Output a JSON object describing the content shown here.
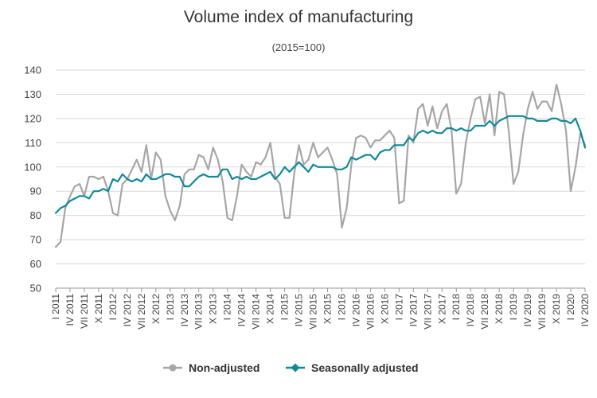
{
  "chart_data": {
    "type": "line",
    "title": "Volume index of manufacturing",
    "subtitle": "(2015=100)",
    "xlabel": "",
    "ylabel": "",
    "ylim": [
      50,
      140
    ],
    "yticks": [
      50,
      60,
      70,
      80,
      90,
      100,
      110,
      120,
      130,
      140
    ],
    "grid": true,
    "legend_position": "bottom-center",
    "x": [
      "I 2011",
      "II 2011",
      "III 2011",
      "IV 2011",
      "V 2011",
      "VI 2011",
      "VII 2011",
      "VIII 2011",
      "IX 2011",
      "X 2011",
      "XI 2011",
      "XII 2011",
      "I 2012",
      "II 2012",
      "III 2012",
      "IV 2012",
      "V 2012",
      "VI 2012",
      "VII 2012",
      "VIII 2012",
      "IX 2012",
      "X 2012",
      "XI 2012",
      "XII 2012",
      "I 2013",
      "II 2013",
      "III 2013",
      "IV 2013",
      "V 2013",
      "VI 2013",
      "VII 2013",
      "VIII 2013",
      "IX 2013",
      "X 2013",
      "XI 2013",
      "XII 2013",
      "I 2014",
      "II 2014",
      "III 2014",
      "IV 2014",
      "V 2014",
      "VI 2014",
      "VII 2014",
      "VIII 2014",
      "IX 2014",
      "X 2014",
      "XI 2014",
      "XII 2014",
      "I 2015",
      "II 2015",
      "III 2015",
      "IV 2015",
      "V 2015",
      "VI 2015",
      "VII 2015",
      "VIII 2015",
      "IX 2015",
      "X 2015",
      "XI 2015",
      "XII 2015",
      "I 2016",
      "II 2016",
      "III 2016",
      "IV 2016",
      "V 2016",
      "VI 2016",
      "VII 2016",
      "VIII 2016",
      "IX 2016",
      "X 2016",
      "XI 2016",
      "XII 2016",
      "I 2017",
      "II 2017",
      "III 2017",
      "IV 2017",
      "V 2017",
      "VI 2017",
      "VII 2017",
      "VIII 2017",
      "IX 2017",
      "X 2017",
      "XI 2017",
      "XII 2017",
      "I 2018",
      "II 2018",
      "III 2018",
      "IV 2018",
      "V 2018",
      "VI 2018",
      "VII 2018",
      "VIII 2018",
      "IX 2018",
      "X 2018",
      "XI 2018",
      "XII 2018",
      "I 2019",
      "II 2019",
      "III 2019",
      "IV 2019",
      "V 2019",
      "VI 2019",
      "VII 2019",
      "VIII 2019",
      "IX 2019",
      "X 2019",
      "XI 2019",
      "XII 2019",
      "I 2020",
      "II 2020",
      "III 2020",
      "IV 2020"
    ],
    "xtick_labels": [
      "I 2011",
      "IV 2011",
      "VII 2011",
      "X 2011",
      "I 2012",
      "IV 2012",
      "VII 2012",
      "X 2012",
      "I 2013",
      "IV 2013",
      "VII 2013",
      "X 2013",
      "I 2014",
      "IV 2014",
      "VII 2014",
      "X 2014",
      "I 2015",
      "IV 2015",
      "VII 2015",
      "X 2015",
      "I 2016",
      "IV 2016",
      "VII 2016",
      "X 2016",
      "I 2017",
      "IV 2017",
      "VII 2017",
      "X 2017",
      "I 2018",
      "IV 2018",
      "VII 2018",
      "X 2018",
      "I 2019",
      "IV 2019",
      "VII 2019",
      "X 2019",
      "I 2020",
      "IV 2020"
    ],
    "series": [
      {
        "name": "Non-adjusted",
        "color": "#a6a6a6",
        "values": [
          67,
          69,
          83,
          88,
          92,
          93,
          88,
          96,
          96,
          95,
          96,
          90,
          81,
          80,
          93,
          95,
          99,
          103,
          98,
          109,
          95,
          106,
          103,
          88,
          82,
          78,
          84,
          97,
          99,
          99,
          105,
          104,
          99,
          108,
          103,
          94,
          79,
          78,
          88,
          101,
          98,
          96,
          102,
          101,
          104,
          110,
          96,
          93,
          79,
          79,
          97,
          109,
          101,
          103,
          110,
          104,
          106,
          108,
          103,
          97,
          75,
          83,
          101,
          112,
          113,
          112,
          108,
          111,
          111,
          113,
          115,
          112,
          85,
          86,
          113,
          110,
          124,
          126,
          117,
          125,
          116,
          123,
          126,
          115,
          89,
          93,
          110,
          120,
          128,
          129,
          118,
          130,
          113,
          131,
          130,
          115,
          93,
          98,
          113,
          124,
          131,
          124,
          127,
          127,
          123,
          134,
          126,
          115,
          90,
          100,
          114,
          109
        ]
      },
      {
        "name": "Seasonally adjusted",
        "color": "#128a98",
        "values": [
          81,
          83,
          84,
          86,
          87,
          88,
          88,
          87,
          90,
          90,
          91,
          90,
          95,
          94,
          97,
          95,
          94,
          95,
          94,
          97,
          95,
          95,
          96,
          97,
          97,
          96,
          96,
          92,
          92,
          94,
          96,
          97,
          96,
          96,
          96,
          99,
          99,
          95,
          96,
          95,
          96,
          95,
          95,
          96,
          97,
          98,
          95,
          97,
          100,
          98,
          100,
          102,
          100,
          98,
          101,
          100,
          100,
          100,
          100,
          99,
          99,
          100,
          104,
          103,
          104,
          105,
          105,
          103,
          106,
          107,
          107,
          109,
          109,
          109,
          112,
          111,
          114,
          115,
          114,
          115,
          114,
          114,
          116,
          116,
          115,
          116,
          115,
          115,
          117,
          117,
          117,
          119,
          117,
          119,
          120,
          121,
          121,
          121,
          121,
          120,
          120,
          119,
          119,
          119,
          120,
          120,
          119,
          119,
          118,
          120,
          115,
          108
        ]
      }
    ]
  }
}
